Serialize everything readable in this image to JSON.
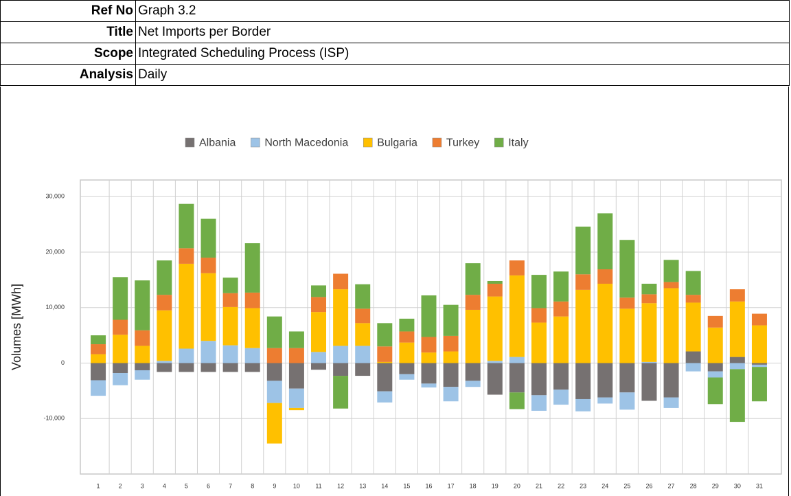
{
  "info": [
    {
      "label": "Ref No",
      "value": "Graph 3.2"
    },
    {
      "label": "Title",
      "value": "Net Imports per Border"
    },
    {
      "label": "Scope",
      "value": "Integrated Scheduling Process (ISP)"
    },
    {
      "label": "Analysis",
      "value": "Daily"
    }
  ],
  "chart_data": {
    "type": "stacked_bar",
    "y_label": "Volumes [MWh]",
    "categories": [
      "1",
      "2",
      "3",
      "4",
      "5",
      "6",
      "7",
      "8",
      "9",
      "10",
      "11",
      "12",
      "13",
      "14",
      "15",
      "16",
      "17",
      "18",
      "19",
      "20",
      "21",
      "22",
      "23",
      "24",
      "25",
      "26",
      "27",
      "28",
      "29",
      "30",
      "31"
    ],
    "ylim": [
      -20000,
      33000
    ],
    "yticks": [
      {
        "value": -10000,
        "label": "-10,000"
      },
      0,
      {
        "value": 10000,
        "label": "10,000"
      },
      {
        "value": 20000,
        "label": "20,000"
      },
      {
        "value": 30000,
        "label": "30,000"
      }
    ],
    "grid": true,
    "legend": "top",
    "series": [
      {
        "name": "Albania",
        "color": "#767171",
        "values": [
          -3100,
          -1800,
          -1300,
          -1600,
          -1600,
          -1600,
          -1600,
          -1600,
          -3200,
          -4600,
          -1200,
          -2300,
          -2300,
          -5100,
          -2000,
          -3700,
          -4300,
          -3200,
          -5700,
          -5300,
          -5800,
          -4800,
          -6500,
          -6200,
          -5300,
          -6800,
          -6200,
          2100,
          -1500,
          1100,
          -300
        ]
      },
      {
        "name": "North Macedonia",
        "color": "#9dc3e6",
        "values": [
          -2800,
          -2200,
          -1700,
          400,
          2600,
          4000,
          3200,
          2700,
          -4000,
          -3500,
          2000,
          3100,
          3100,
          -2000,
          -1000,
          -700,
          -2600,
          -1100,
          400,
          1100,
          -2800,
          -2700,
          -2200,
          -1100,
          -3100,
          200,
          -1900,
          -1500,
          -1100,
          -1100,
          -400
        ]
      },
      {
        "name": "Bulgaria",
        "color": "#ffc000",
        "values": [
          1600,
          5100,
          3100,
          9100,
          15300,
          12200,
          6900,
          7200,
          -7300,
          -400,
          7200,
          10200,
          4100,
          200,
          3700,
          1900,
          2100,
          9600,
          11600,
          14700,
          7300,
          8400,
          13200,
          14300,
          9800,
          10600,
          13500,
          8800,
          6400,
          10000,
          6800
        ]
      },
      {
        "name": "Turkey",
        "color": "#ed7d31",
        "values": [
          1800,
          2700,
          2800,
          2800,
          2800,
          2800,
          2500,
          2800,
          2700,
          2700,
          2700,
          2800,
          2600,
          2800,
          2000,
          2800,
          2800,
          2700,
          2300,
          2700,
          2600,
          2700,
          2800,
          2600,
          2000,
          1600,
          1100,
          1400,
          2100,
          2200,
          2100
        ]
      },
      {
        "name": "Italy",
        "color": "#70ad47",
        "values": [
          1600,
          7700,
          9000,
          6200,
          8000,
          7000,
          2800,
          8900,
          5700,
          3000,
          2100,
          -5900,
          4400,
          4200,
          2300,
          7500,
          5600,
          5700,
          500,
          -3000,
          6000,
          5400,
          8600,
          10100,
          10400,
          1900,
          4000,
          4300,
          -4800,
          -9500,
          -6200
        ]
      }
    ]
  }
}
